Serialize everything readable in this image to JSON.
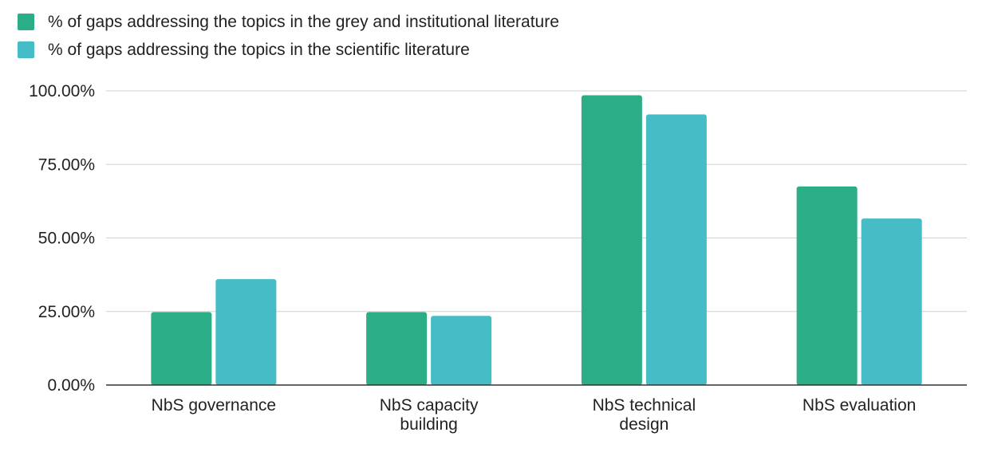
{
  "chart_data": {
    "type": "bar",
    "categories": [
      [
        "NbS governance"
      ],
      [
        "NbS capacity",
        "building"
      ],
      [
        "NbS technical",
        "design"
      ],
      [
        "NbS evaluation"
      ]
    ],
    "series": [
      {
        "name": "% of gaps addressing the topics in the grey and institutional literature",
        "color": "#2bad87",
        "values": [
          24.8,
          24.8,
          98.5,
          67.5
        ]
      },
      {
        "name": "% of gaps addressing the topics in the scientific literature",
        "color": "#46bcc7",
        "values": [
          36.0,
          23.5,
          92.0,
          56.6
        ]
      }
    ],
    "yticks": [
      "0.00%",
      "25.00%",
      "50.00%",
      "75.00%",
      "100.00%"
    ],
    "ylim": [
      0,
      100
    ],
    "grid": true,
    "legend_position": "top-left"
  }
}
